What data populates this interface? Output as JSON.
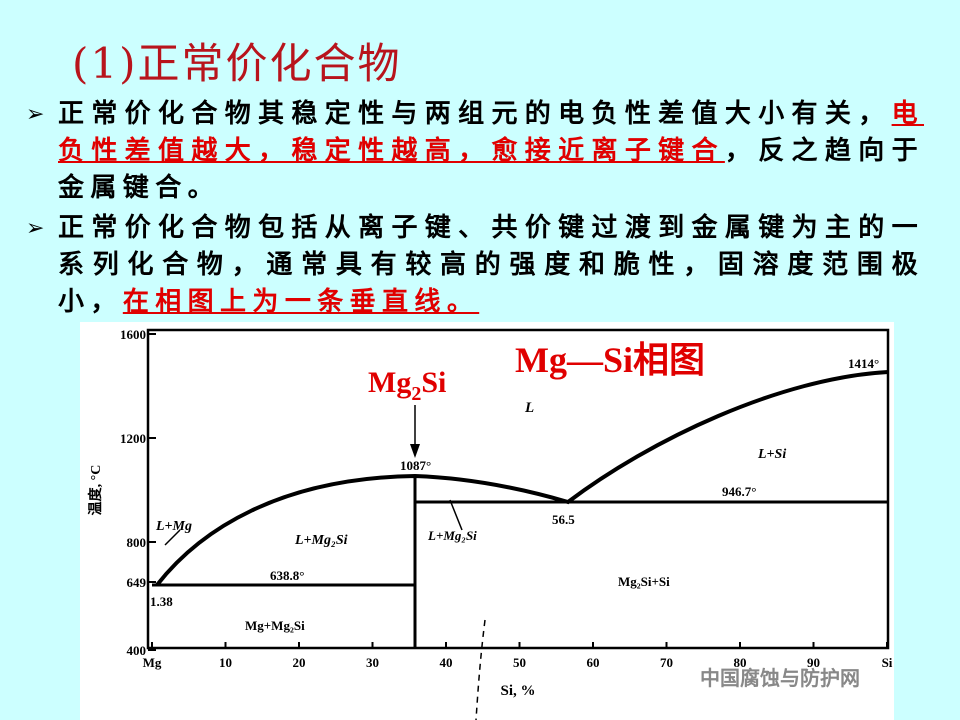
{
  "title": "(1)正常价化合物",
  "bullets": [
    {
      "segments": [
        {
          "text": "正常价化合物其稳定性与两组元的电负性差值大小有关，",
          "emphasis": false
        },
        {
          "text": "电负性差值越大，稳定性越高，愈接近离子键合",
          "emphasis": true
        },
        {
          "text": "，反之趋向于金属键合。",
          "emphasis": false
        }
      ]
    },
    {
      "segments": [
        {
          "text": "正常价化合物包括从离子键、共价键过渡到金属键为主的一系列化合物，通常具有较高的强度和脆性，固溶度范围极小，",
          "emphasis": false
        },
        {
          "text": "在相图上为一条垂直线。",
          "emphasis": true
        }
      ]
    }
  ],
  "figure": {
    "title": "Mg—Si相图",
    "compound_label": [
      "Mg",
      "2",
      "Si"
    ],
    "y_axis_label": "温度, °C",
    "x_axis_label": "Si, %",
    "y_tick_labels": [
      "1600",
      "1200",
      "800",
      "649",
      "400"
    ],
    "x_tick_labels": [
      "Mg",
      "10",
      "20",
      "30",
      "40",
      "50",
      "60",
      "70",
      "80",
      "90",
      "Si"
    ],
    "annotations": [
      "1414°",
      "L",
      "L+Si",
      "1087°",
      "946.7°",
      "56.5",
      "L+Mg",
      "L+Mg₂Si",
      "L+Mg₂Si",
      "638.8°",
      "1.38",
      "Mg₂Si+Si",
      "Mg+Mg₂Si"
    ]
  },
  "watermark": "中国腐蚀与防护网"
}
